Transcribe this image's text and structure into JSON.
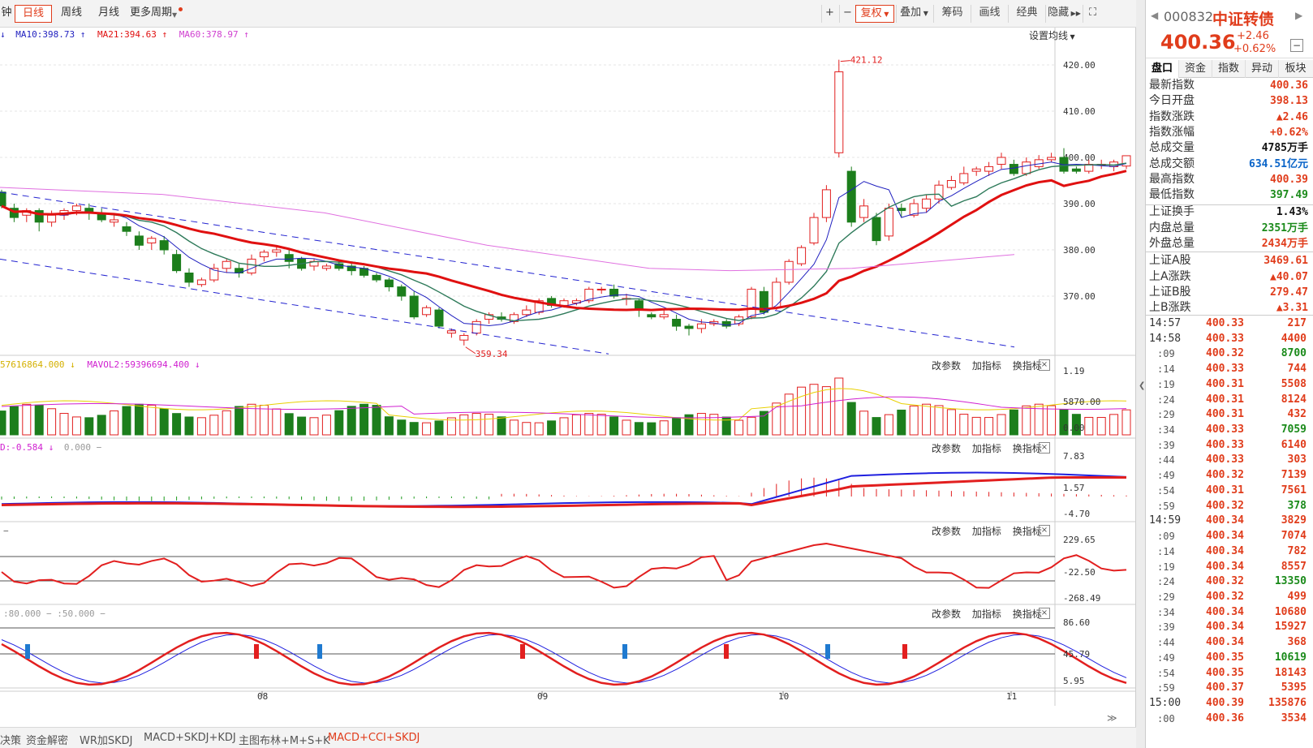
{
  "toolbar": {
    "periods": [
      "钟",
      "日线",
      "周线",
      "月线",
      "更多周期"
    ],
    "active_period": "日线",
    "tools": [
      "+",
      "−",
      "复权",
      "叠加",
      "筹码",
      "画线",
      "经典",
      "隐藏"
    ],
    "active_tool": "复权",
    "fullscreen_icon": "expand-icon"
  },
  "ma_line": {
    "items": [
      {
        "text": "MA10:398.73",
        "arrow": "↑",
        "color": "#1f1fbf"
      },
      {
        "text": "MA21:394.63",
        "arrow": "↑",
        "color": "#e01010"
      },
      {
        "text": "MA60:378.97",
        "arrow": "↑",
        "color": "#d040d0"
      }
    ],
    "lead_arrow": "↓",
    "settings_label": "设置均线"
  },
  "price_axis": [
    "420.00",
    "410.00",
    "400.00",
    "390.00",
    "380.00",
    "370.00"
  ],
  "annotations": {
    "high": "421.12",
    "low": "359.34"
  },
  "volume_panel": {
    "values": [
      {
        "text": "57616864.000",
        "arrow": "↓",
        "color": "#d4b000"
      },
      {
        "text": "MAVOL2:59396694.400",
        "arrow": "↓",
        "color": "#d020d0"
      }
    ],
    "axis": [
      "1.19",
      "5870.00",
      "0.00"
    ]
  },
  "macd_panel": {
    "values": [
      {
        "text": "D:-0.584",
        "arrow": "↓",
        "color": "#d020d0"
      },
      {
        "text": "0.000",
        "arrow": "−",
        "color": "#999999"
      }
    ],
    "axis": [
      "7.83",
      "1.57",
      "-4.70"
    ]
  },
  "cci_panel": {
    "values": [
      "−"
    ],
    "axis": [
      "229.65",
      "-22.50",
      "-268.49"
    ]
  },
  "kdj_panel": {
    "values": [
      ":80.000 − :50.000 −"
    ],
    "axis": [
      "86.60",
      "45.79",
      "5.95"
    ]
  },
  "panel_buttons": {
    "params": "改参数",
    "add": "加指标",
    "swap": "换指标",
    "close": "×"
  },
  "date_axis": [
    "08",
    "09",
    "10",
    "11"
  ],
  "bottom_tabs": [
    "决策",
    "资金解密",
    "WR加SKDJ",
    "MACD+SKDJ+KDJ",
    "主图布林+M+S+K",
    "MACD+CCI+SKDJ"
  ],
  "active_bottom_tab": "MACD+CCI+SKDJ",
  "side": {
    "code": "000832",
    "name": "中证转债",
    "price": "400.36",
    "change": "+2.46",
    "change_pct": "+0.62%",
    "tabs": [
      "盘口",
      "资金",
      "指数",
      "异动",
      "板块"
    ],
    "active_tab": "盘口",
    "quote": [
      {
        "label": "最新指数",
        "value": "400.36",
        "color": "red"
      },
      {
        "label": "今日开盘",
        "value": "398.13",
        "color": "red"
      },
      {
        "label": "指数涨跌",
        "value": "▲2.46",
        "color": "red"
      },
      {
        "label": "指数涨幅",
        "value": "+0.62%",
        "color": "red"
      },
      {
        "label": "总成交量",
        "value": "4785万手",
        "color": "black"
      },
      {
        "label": "总成交额",
        "value": "634.51亿元",
        "color": "blue"
      },
      {
        "label": "最高指数",
        "value": "400.39",
        "color": "red"
      },
      {
        "label": "最低指数",
        "value": "397.49",
        "color": "green"
      },
      {
        "label": "上证换手",
        "value": "1.43%",
        "color": "black"
      },
      {
        "label": "内盘总量",
        "value": "2351万手",
        "color": "green"
      },
      {
        "label": "外盘总量",
        "value": "2434万手",
        "color": "red"
      },
      {
        "label": "上证A股",
        "value": "3469.61",
        "color": "red"
      },
      {
        "label": "上A涨跌",
        "value": "▲40.07",
        "color": "red"
      },
      {
        "label": "上证B股",
        "value": "279.47",
        "color": "red"
      },
      {
        "label": "上B涨跌",
        "value": "▲3.31",
        "color": "red"
      }
    ],
    "ticks": [
      {
        "time": "14:57",
        "sub": false,
        "price": "400.33",
        "vol": "217"
      },
      {
        "time": "14:58",
        "sub": false,
        "price": "400.33",
        "vol": "4400"
      },
      {
        "time": ":09",
        "sub": true,
        "price": "400.32",
        "vol": "8700"
      },
      {
        "time": ":14",
        "sub": true,
        "price": "400.33",
        "vol": "744"
      },
      {
        "time": ":19",
        "sub": true,
        "price": "400.31",
        "vol": "5508"
      },
      {
        "time": ":24",
        "sub": true,
        "price": "400.31",
        "vol": "8124"
      },
      {
        "time": ":29",
        "sub": true,
        "price": "400.31",
        "vol": "432"
      },
      {
        "time": ":34",
        "sub": true,
        "price": "400.33",
        "vol": "7059"
      },
      {
        "time": ":39",
        "sub": true,
        "price": "400.33",
        "vol": "6140"
      },
      {
        "time": ":44",
        "sub": true,
        "price": "400.33",
        "vol": "303"
      },
      {
        "time": ":49",
        "sub": true,
        "price": "400.32",
        "vol": "7139"
      },
      {
        "time": ":54",
        "sub": true,
        "price": "400.31",
        "vol": "7561"
      },
      {
        "time": ":59",
        "sub": true,
        "price": "400.32",
        "vol": "378"
      },
      {
        "time": "14:59",
        "sub": false,
        "price": "400.34",
        "vol": "3829"
      },
      {
        "time": ":09",
        "sub": true,
        "price": "400.34",
        "vol": "7074"
      },
      {
        "time": ":14",
        "sub": true,
        "price": "400.34",
        "vol": "782"
      },
      {
        "time": ":19",
        "sub": true,
        "price": "400.34",
        "vol": "8557"
      },
      {
        "time": ":24",
        "sub": true,
        "price": "400.32",
        "vol": "13350"
      },
      {
        "time": ":29",
        "sub": true,
        "price": "400.32",
        "vol": "499"
      },
      {
        "time": ":34",
        "sub": true,
        "price": "400.34",
        "vol": "10680"
      },
      {
        "time": ":39",
        "sub": true,
        "price": "400.34",
        "vol": "15927"
      },
      {
        "time": ":44",
        "sub": true,
        "price": "400.34",
        "vol": "368"
      },
      {
        "time": ":49",
        "sub": true,
        "price": "400.35",
        "vol": "10619"
      },
      {
        "time": ":54",
        "sub": true,
        "price": "400.35",
        "vol": "18143"
      },
      {
        "time": ":59",
        "sub": true,
        "price": "400.37",
        "vol": "5395"
      },
      {
        "time": "15:00",
        "sub": false,
        "price": "400.39",
        "vol": "135876"
      },
      {
        "time": ":00",
        "sub": true,
        "price": "400.36",
        "vol": "3534"
      }
    ]
  }
}
